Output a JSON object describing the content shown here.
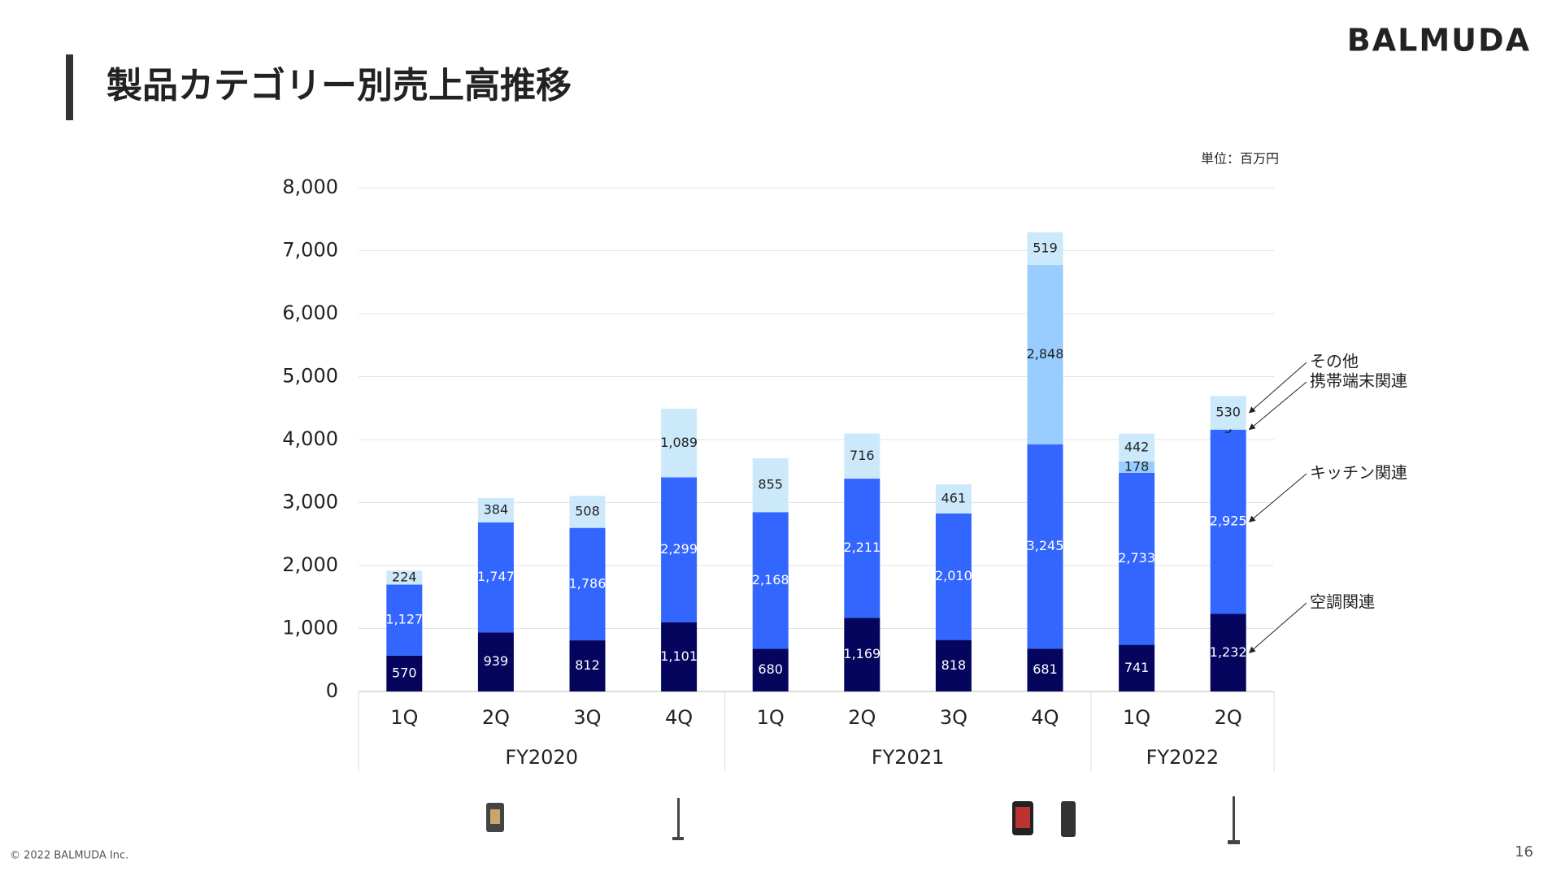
{
  "header": {
    "title": "製品カテゴリー別売上高推移",
    "logo": "BALMUDA"
  },
  "chart_data": {
    "type": "stacked_bar",
    "unit_note": "単位：百万円",
    "groups": [
      {
        "name": "FY2020",
        "categories": [
          "1Q",
          "2Q",
          "3Q",
          "4Q"
        ]
      },
      {
        "name": "FY2021",
        "categories": [
          "1Q",
          "2Q",
          "3Q",
          "4Q"
        ]
      },
      {
        "name": "FY2022",
        "categories": [
          "1Q",
          "2Q"
        ]
      }
    ],
    "series": [
      {
        "name": "空調関連",
        "color": "#05055e",
        "values": [
          570,
          939,
          812,
          1101,
          680,
          1169,
          818,
          681,
          741,
          1232
        ],
        "value_labels": [
          "570",
          "939",
          "812",
          "1,101",
          "680",
          "1,169",
          "818",
          "681",
          "741",
          "1,232"
        ]
      },
      {
        "name": "キッチン関連",
        "color": "#3366ff",
        "values": [
          1127,
          1747,
          1786,
          2299,
          2168,
          2211,
          2010,
          3245,
          2733,
          2925
        ],
        "value_labels": [
          "1,127",
          "1,747",
          "1,786",
          "2,299",
          "2,168",
          "2,211",
          "2,010",
          "3,245",
          "2,733",
          "2,925"
        ]
      },
      {
        "name": "携帯端末関連",
        "color": "#99ccff",
        "values": [
          null,
          null,
          null,
          null,
          null,
          null,
          null,
          2848,
          178,
          5
        ],
        "value_labels": [
          null,
          null,
          null,
          null,
          null,
          null,
          null,
          "2,848",
          "178",
          "5"
        ]
      },
      {
        "name": "その他",
        "color": "#cce9fb",
        "values": [
          224,
          384,
          508,
          1089,
          855,
          716,
          461,
          519,
          442,
          530
        ],
        "value_labels": [
          "224",
          "384",
          "508",
          "1,089",
          "855",
          "716",
          "461",
          "519",
          "442",
          "530"
        ]
      }
    ],
    "ylim": [
      0,
      8000
    ],
    "yticks": [
      0,
      {
        "value": 1000,
        "label": "1,000"
      },
      {
        "value": 2000,
        "label": "2,000"
      },
      {
        "value": 3000,
        "label": "3,000"
      },
      {
        "value": 4000,
        "label": "4,000"
      },
      {
        "value": 5000,
        "label": "5,000"
      },
      {
        "value": 6000,
        "label": "6,000"
      },
      {
        "value": 7000,
        "label": "7,000"
      },
      {
        "value": 8000,
        "label": "8,000"
      }
    ],
    "grid": true
  },
  "footer": {
    "copyright": "© 2022 BALMUDA Inc.",
    "page_number": "16"
  }
}
